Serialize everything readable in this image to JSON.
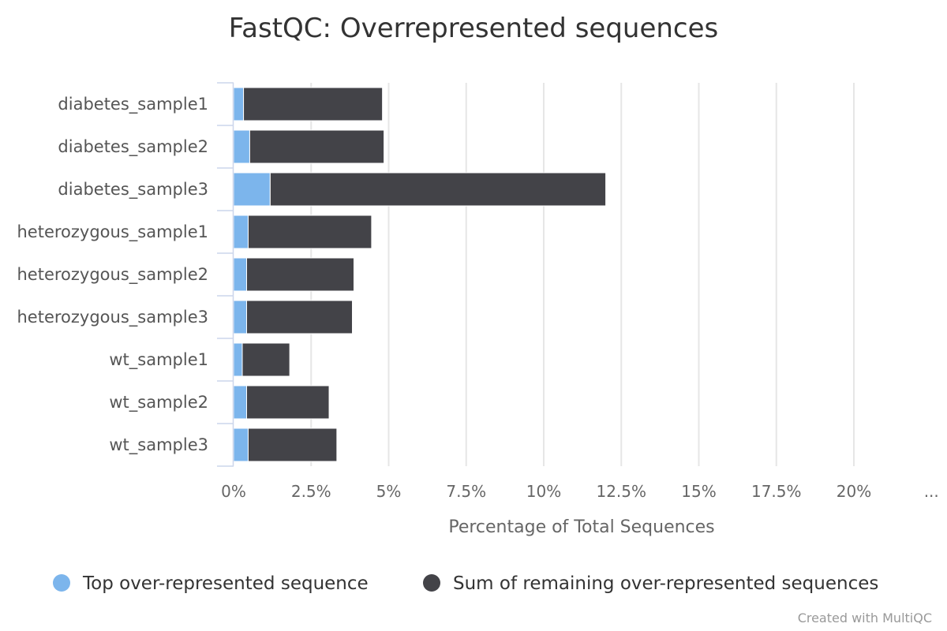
{
  "chart_data": {
    "type": "bar",
    "orientation": "horizontal",
    "stacked": true,
    "title": "FastQC: Overrepresented sequences",
    "xlabel": "Percentage of Total Sequences",
    "ylabel": "",
    "xlim": [
      0,
      22.5
    ],
    "x_ticks": [
      "0%",
      "2.5%",
      "5%",
      "7.5%",
      "10%",
      "12.5%",
      "15%",
      "17.5%",
      "20%",
      "..."
    ],
    "categories": [
      "diabetes_sample1",
      "diabetes_sample2",
      "diabetes_sample3",
      "heterozygous_sample1",
      "heterozygous_sample2",
      "heterozygous_sample3",
      "wt_sample1",
      "wt_sample2",
      "wt_sample3"
    ],
    "series": [
      {
        "name": "Top over-represented sequence",
        "color": "#7cb5ec",
        "values": [
          0.32,
          0.52,
          1.18,
          0.47,
          0.42,
          0.42,
          0.28,
          0.42,
          0.47
        ]
      },
      {
        "name": "Sum of remaining over-represented sequences",
        "color": "#434348",
        "values": [
          4.48,
          4.33,
          10.82,
          3.98,
          3.46,
          3.41,
          1.53,
          2.66,
          2.86
        ]
      }
    ],
    "grid": true,
    "legend_position": "bottom"
  },
  "credit": "Created with MultiQC"
}
